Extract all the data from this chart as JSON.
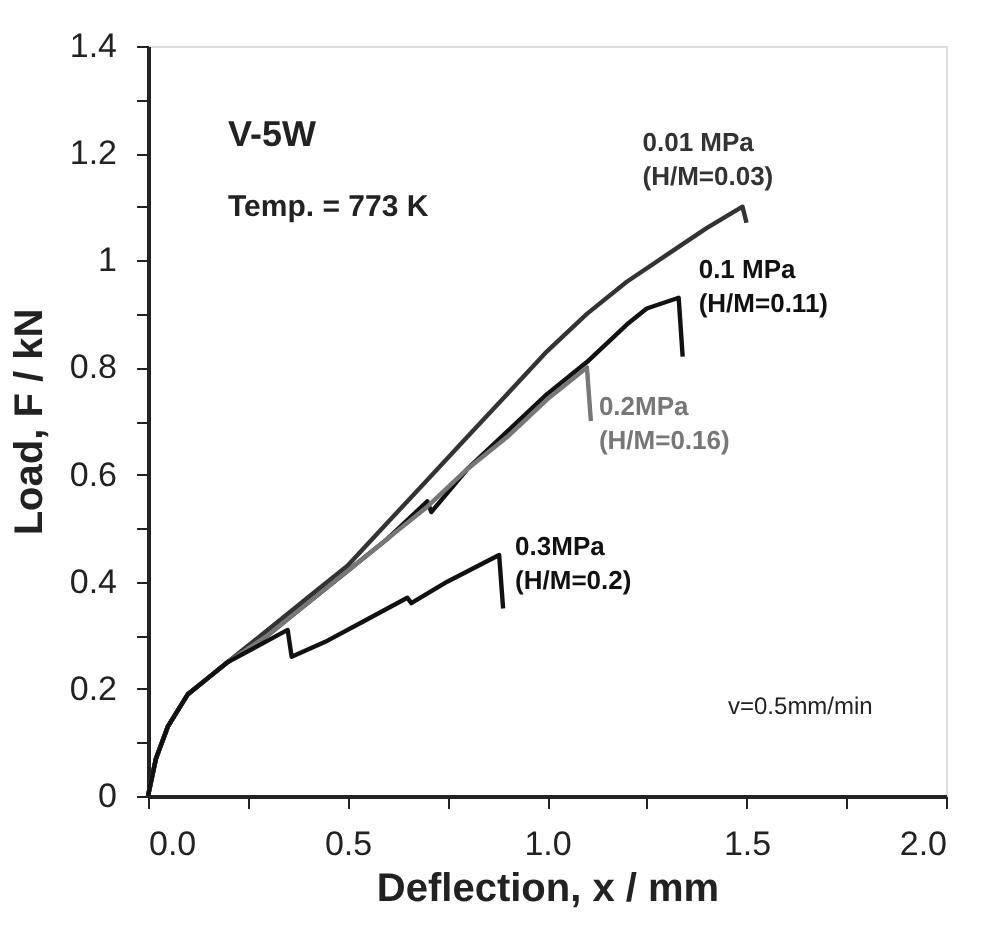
{
  "chart_data": {
    "type": "line",
    "xlabel": "Deflection, x / mm",
    "ylabel": "Load, F / kN",
    "annotations": [
      "V-5W",
      "Temp. = 773 K",
      "v=0.5mm/min"
    ],
    "series": [
      {
        "name": "0.01 MPa\n(H/M=0.03)",
        "color": "#333333",
        "x": [
          0,
          0.02,
          0.05,
          0.1,
          0.15,
          0.2,
          0.3,
          0.4,
          0.5,
          0.6,
          0.7,
          0.8,
          0.9,
          1.0,
          1.1,
          1.2,
          1.3,
          1.4,
          1.49,
          1.5
        ],
        "values": [
          0,
          0.07,
          0.13,
          0.19,
          0.22,
          0.25,
          0.31,
          0.37,
          0.43,
          0.51,
          0.59,
          0.67,
          0.75,
          0.83,
          0.9,
          0.96,
          1.01,
          1.06,
          1.1,
          1.07
        ]
      },
      {
        "name": "0.1 MPa\n(H/M=0.11)",
        "color": "#111111",
        "x": [
          0,
          0.02,
          0.05,
          0.1,
          0.15,
          0.2,
          0.3,
          0.4,
          0.5,
          0.6,
          0.7,
          0.71,
          0.8,
          0.9,
          1.0,
          1.1,
          1.2,
          1.25,
          1.33,
          1.34
        ],
        "values": [
          0,
          0.07,
          0.13,
          0.19,
          0.22,
          0.25,
          0.3,
          0.36,
          0.42,
          0.48,
          0.55,
          0.53,
          0.61,
          0.68,
          0.75,
          0.81,
          0.88,
          0.91,
          0.93,
          0.82
        ]
      },
      {
        "name": "0.2MPa\n(H/M=0.16)",
        "color": "#777777",
        "x": [
          0,
          0.02,
          0.05,
          0.1,
          0.15,
          0.2,
          0.3,
          0.4,
          0.5,
          0.6,
          0.7,
          0.8,
          0.9,
          1.0,
          1.1,
          1.11
        ],
        "values": [
          0,
          0.07,
          0.13,
          0.19,
          0.22,
          0.25,
          0.3,
          0.36,
          0.42,
          0.48,
          0.54,
          0.61,
          0.67,
          0.74,
          0.8,
          0.7
        ]
      },
      {
        "name": "0.3MPa\n(H/M=0.2)",
        "color": "#111111",
        "x": [
          0,
          0.02,
          0.05,
          0.1,
          0.15,
          0.2,
          0.3,
          0.35,
          0.36,
          0.45,
          0.55,
          0.6,
          0.65,
          0.66,
          0.75,
          0.88,
          0.89
        ],
        "values": [
          0,
          0.07,
          0.13,
          0.19,
          0.22,
          0.25,
          0.29,
          0.31,
          0.26,
          0.29,
          0.33,
          0.35,
          0.37,
          0.36,
          0.4,
          0.45,
          0.35
        ]
      }
    ],
    "xlim": [
      0,
      2.0
    ],
    "ylim": [
      0,
      1.4
    ],
    "xticks": [
      {
        "value": 0,
        "label": "0.0"
      },
      {
        "value": 0.25,
        "label": null
      },
      {
        "value": 0.5,
        "label": "0.5"
      },
      {
        "value": 0.75,
        "label": null
      },
      {
        "value": 1.0,
        "label": "1.0"
      },
      {
        "value": 1.25,
        "label": null
      },
      {
        "value": 1.5,
        "label": "1.5"
      },
      {
        "value": 1.75,
        "label": null
      },
      {
        "value": 2.0,
        "label": "2.0"
      }
    ],
    "yticks": [
      0,
      {
        "value": 0.1,
        "label": null
      },
      0.2,
      {
        "value": 0.3,
        "label": null
      },
      0.4,
      {
        "value": 0.5,
        "label": null
      },
      0.6,
      {
        "value": 0.7,
        "label": null
      },
      0.8,
      {
        "value": 0.9,
        "label": null
      },
      1,
      {
        "value": 1.1,
        "label": null
      },
      1.2,
      {
        "value": 1.3,
        "label": null
      },
      1.4
    ],
    "grid": false,
    "marker": "none",
    "line_style": "solid"
  }
}
